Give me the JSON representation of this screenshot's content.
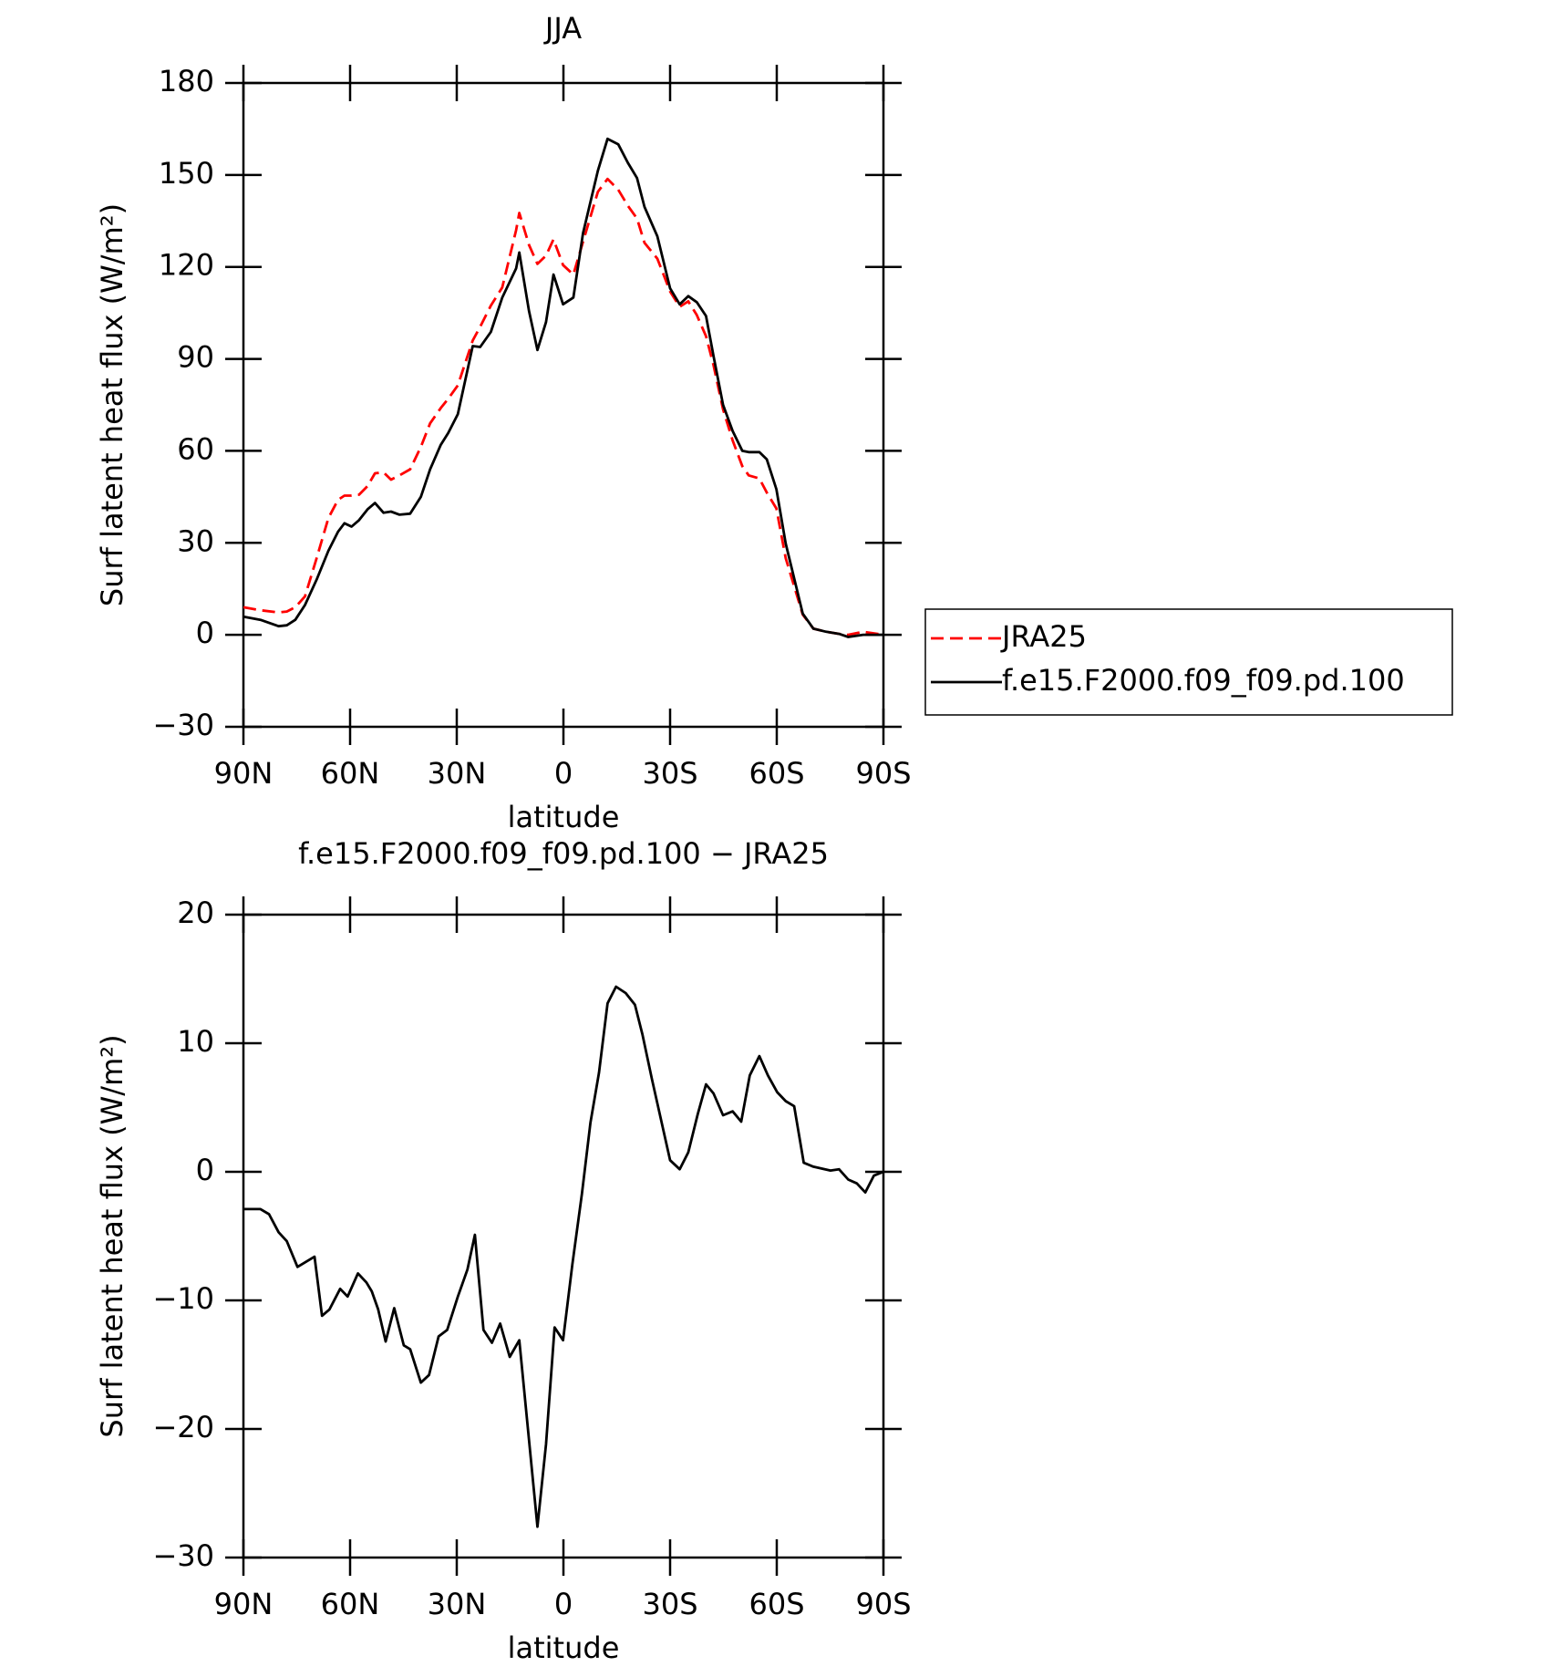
{
  "chart_data": [
    {
      "type": "line",
      "title": "JJA",
      "x_label": "latitude",
      "y_label": "Surf latent heat flux (W/m²)",
      "xlim": [
        90,
        -90
      ],
      "ylim": [
        -30,
        180
      ],
      "xticks": [
        {
          "value": 90,
          "label": "90N"
        },
        {
          "value": 60,
          "label": "60N"
        },
        {
          "value": 30,
          "label": "30N"
        },
        0,
        {
          "value": -30,
          "label": "30S"
        },
        {
          "value": -60,
          "label": "60S"
        },
        {
          "value": -90,
          "label": "90S"
        }
      ],
      "yticks": [
        180,
        150,
        120,
        90,
        60,
        30,
        0,
        {
          "value": -30,
          "label": "−30"
        }
      ],
      "legend": "right",
      "x": [
        90,
        85.2,
        80.1,
        77.8,
        75.4,
        72.7,
        69.4,
        66.1,
        63.4,
        61.6,
        59.6,
        57.5,
        55.1,
        53.0,
        50.6,
        48.5,
        46.1,
        43.1,
        40.1,
        37.5,
        34.5,
        32.4,
        29.7,
        25.5,
        23.4,
        20.4,
        17.2,
        13.3,
        12.4,
        9.7,
        7.3,
        4.9,
        2.8,
        0.1,
        -2.8,
        -5.5,
        -9.7,
        -12.4,
        -15.4,
        -18.1,
        -20.7,
        -22.8,
        -26.4,
        -30,
        -32.7,
        -35.1,
        -37.5,
        -40.1,
        -42.2,
        -44.9,
        -47.6,
        -50.3,
        -52.1,
        -55.1,
        -57.2,
        -59.9,
        -62.5,
        -67.3,
        -70.3,
        -73.9,
        -77.5,
        -80.1,
        -84.3,
        -90
      ],
      "series": [
        {
          "name": "JRA25",
          "color": "#ff0000",
          "line_style": "dashed",
          "values": [
            9,
            8,
            7.3,
            7.6,
            9,
            12.5,
            25,
            38.1,
            44,
            45.4,
            45.4,
            45.7,
            48.5,
            52.7,
            53,
            50.6,
            52,
            54,
            61.3,
            69,
            74,
            77,
            81.4,
            96,
            100.5,
            107.4,
            113.3,
            132,
            137.6,
            127.2,
            121,
            123.7,
            129,
            120.6,
            117.5,
            128.2,
            144.5,
            148.7,
            145.2,
            140,
            135.8,
            127.9,
            122.7,
            112,
            107,
            108.8,
            104.3,
            97.4,
            88,
            73.5,
            63.4,
            55,
            52,
            51,
            46.4,
            41.2,
            25,
            6.6,
            2,
            1,
            0.3,
            0,
            1,
            0
          ]
        },
        {
          "name": "f.e15.F2000.f09_f09.pd.100",
          "color": "#000000",
          "line_style": "solid",
          "values": [
            5.9,
            4.9,
            2.8,
            3.1,
            4.9,
            9.7,
            18,
            27.4,
            33.6,
            36.4,
            35.3,
            37.4,
            40.9,
            43,
            39.8,
            40.2,
            39.2,
            39.5,
            45,
            54,
            62,
            65.8,
            72,
            94.2,
            93.9,
            98.8,
            110,
            119.5,
            124.7,
            105.7,
            92.9,
            102,
            117.5,
            107.8,
            110,
            131,
            151.4,
            161.8,
            160,
            154,
            149,
            139.6,
            130,
            113,
            107.8,
            110.5,
            108.5,
            104,
            91,
            75,
            66.5,
            60,
            59.6,
            59.6,
            57.2,
            47.5,
            29.8,
            6.9,
            2,
            1,
            0.3,
            -0.7,
            0,
            0
          ]
        }
      ]
    },
    {
      "type": "line",
      "title": "f.e15.F2000.f09_f09.pd.100 − JRA25",
      "x_label": "latitude",
      "y_label": "Surf latent heat flux (W/m²)",
      "xlim": [
        90,
        -90
      ],
      "ylim": [
        -30,
        20
      ],
      "xticks": [
        {
          "value": 90,
          "label": "90N"
        },
        {
          "value": 60,
          "label": "60N"
        },
        {
          "value": 30,
          "label": "30N"
        },
        0,
        {
          "value": -30,
          "label": "30S"
        },
        {
          "value": -60,
          "label": "60S"
        },
        {
          "value": -90,
          "label": "90S"
        }
      ],
      "yticks": [
        20,
        10,
        0,
        {
          "value": -10,
          "label": "−10"
        },
        {
          "value": -20,
          "label": "−20"
        },
        {
          "value": -30,
          "label": "−30"
        }
      ],
      "color": "#000000",
      "x": [
        90,
        85.2,
        82.8,
        80.1,
        77.8,
        74.8,
        70.0,
        67.9,
        65.8,
        62.8,
        60.7,
        57.8,
        55.4,
        53.9,
        52.1,
        50.0,
        47.6,
        44.9,
        43.1,
        40.1,
        37.8,
        35.1,
        32.7,
        29.7,
        27.0,
        24.9,
        22.5,
        20.1,
        17.8,
        15.1,
        12.4,
        7.3,
        4.9,
        2.5,
        0.1,
        -2.5,
        -5.2,
        -7.6,
        -10.0,
        -12.4,
        -14.8,
        -17.5,
        -20.1,
        -22.2,
        -24.9,
        -30.0,
        -32.7,
        -35.1,
        -37.8,
        -40.1,
        -42.2,
        -44.9,
        -47.6,
        -50.0,
        -52.4,
        -55.1,
        -57.5,
        -60.1,
        -62.5,
        -64.9,
        -67.6,
        -70.3,
        -75.1,
        -77.5,
        -80.1,
        -82.5,
        -84.9,
        -87.3,
        -90
      ],
      "values": [
        -2.9,
        -2.9,
        -3.3,
        -4.7,
        -5.4,
        -7.4,
        -6.6,
        -11.2,
        -10.7,
        -9.1,
        -9.7,
        -7.9,
        -8.6,
        -9.3,
        -10.7,
        -13.2,
        -10.6,
        -13.5,
        -13.8,
        -16.4,
        -15.8,
        -12.8,
        -12.3,
        -9.7,
        -7.6,
        -4.9,
        -12.3,
        -13.3,
        -11.8,
        -14.4,
        -13.1,
        -27.6,
        -21.2,
        -12.1,
        -13.1,
        -7.2,
        -1.7,
        3.8,
        7.7,
        13.1,
        14.4,
        13.9,
        13,
        10.7,
        7.2,
        0.9,
        0.2,
        1.5,
        4.5,
        6.8,
        6.1,
        4.4,
        4.7,
        3.9,
        7.5,
        9,
        7.5,
        6.2,
        5.5,
        5.1,
        0.7,
        0.4,
        0.1,
        0.2,
        -0.6,
        -0.9,
        -1.6,
        -0.3,
        0
      ]
    }
  ]
}
